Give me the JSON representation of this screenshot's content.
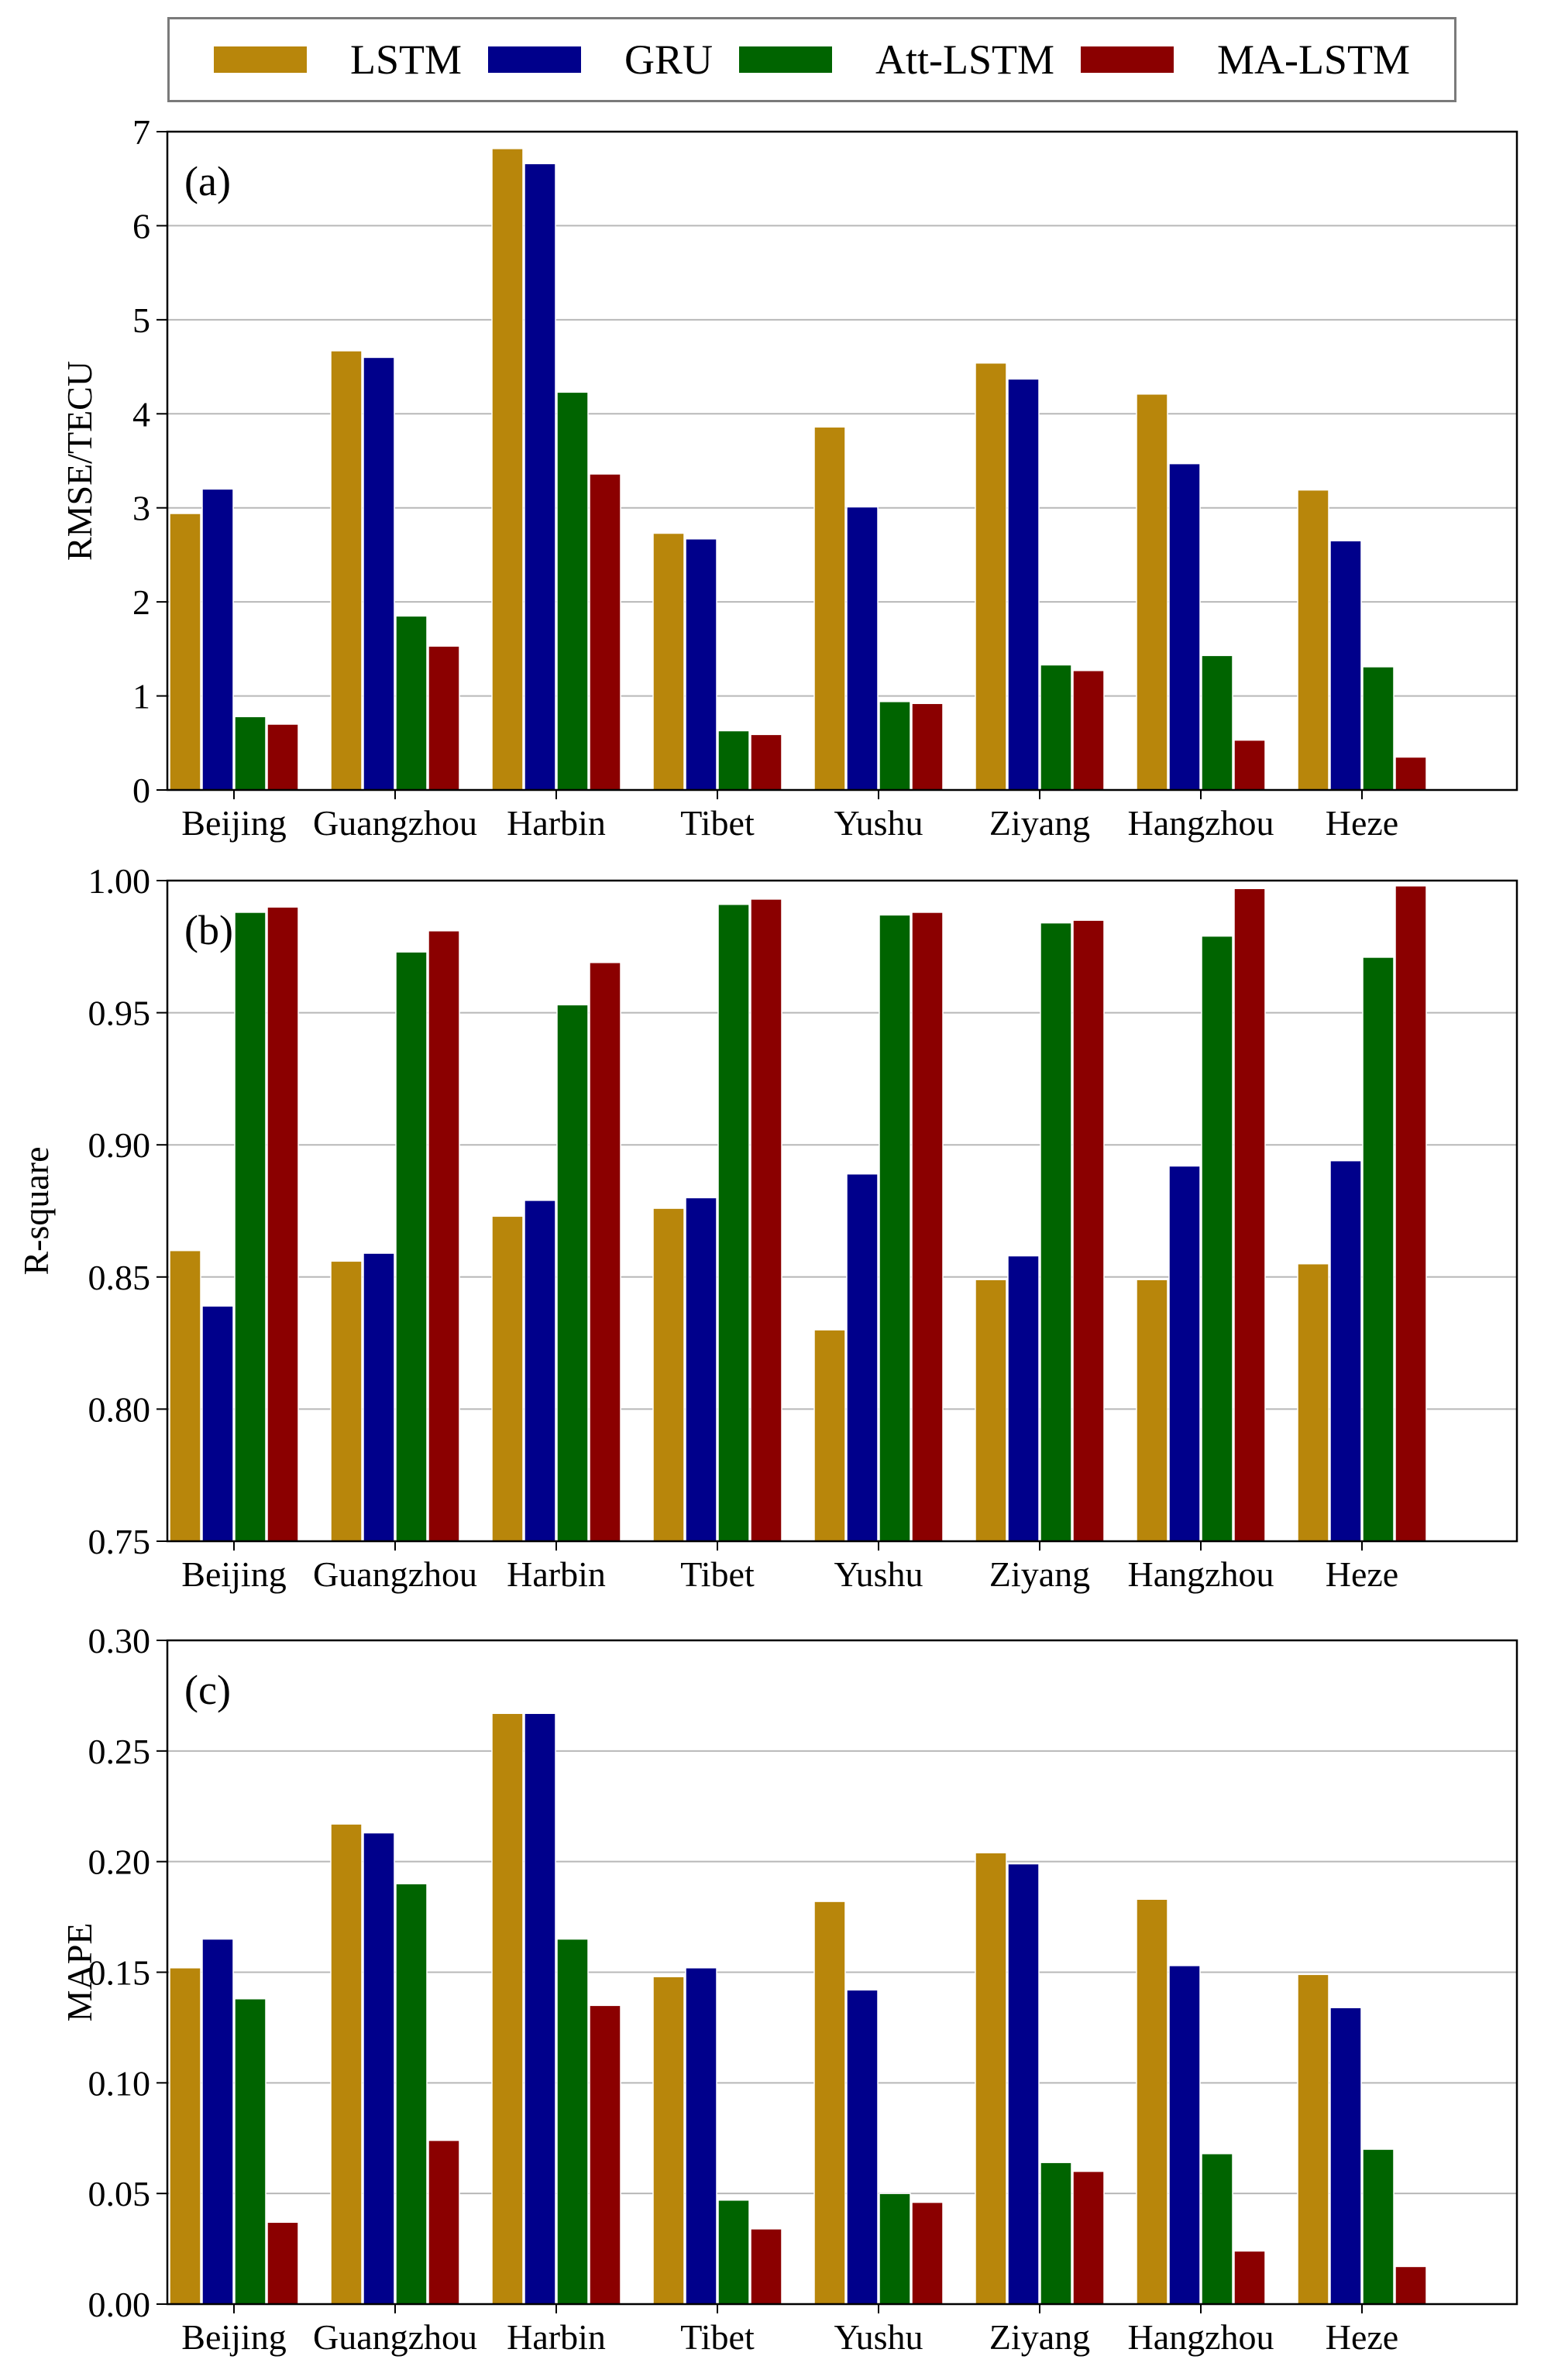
{
  "chart_data": [
    {
      "type": "bar",
      "panel_label": "(a)",
      "ylabel": "RMSE/TECU",
      "ylim": [
        0,
        7
      ],
      "yticks": [
        "0",
        "1",
        "2",
        "3",
        "4",
        "5",
        "6",
        "7"
      ],
      "categories": [
        "Beijing",
        "Guangzhou",
        "Harbin",
        "Tibet",
        "Yushu",
        "Ziyang",
        "Hangzhou",
        "Heze"
      ],
      "series": [
        {
          "name": "LSTM",
          "values": [
            2.94,
            4.67,
            6.82,
            2.73,
            3.86,
            4.54,
            4.21,
            3.19
          ]
        },
        {
          "name": "GRU",
          "values": [
            3.2,
            4.6,
            6.66,
            2.67,
            3.01,
            4.37,
            3.47,
            2.65
          ]
        },
        {
          "name": "Att-LSTM",
          "values": [
            0.78,
            1.85,
            4.23,
            0.63,
            0.94,
            1.33,
            1.43,
            1.31
          ]
        },
        {
          "name": "MA-LSTM",
          "values": [
            0.7,
            1.53,
            3.36,
            0.59,
            0.92,
            1.27,
            0.53,
            0.35
          ]
        }
      ],
      "grid": true
    },
    {
      "type": "bar",
      "panel_label": "(b)",
      "ylabel": "R-square",
      "ylim": [
        0.75,
        1.0
      ],
      "yticks": [
        "0.75",
        "0.80",
        "0.85",
        "0.90",
        "0.95",
        "1.00"
      ],
      "categories": [
        "Beijing",
        "Guangzhou",
        "Harbin",
        "Tibet",
        "Yushu",
        "Ziyang",
        "Hangzhou",
        "Heze"
      ],
      "series": [
        {
          "name": "LSTM",
          "values": [
            0.86,
            0.856,
            0.873,
            0.876,
            0.83,
            0.849,
            0.849,
            0.855
          ]
        },
        {
          "name": "GRU",
          "values": [
            0.839,
            0.859,
            0.879,
            0.88,
            0.889,
            0.858,
            0.892,
            0.894
          ]
        },
        {
          "name": "Att-LSTM",
          "values": [
            0.988,
            0.973,
            0.953,
            0.991,
            0.987,
            0.984,
            0.979,
            0.971
          ]
        },
        {
          "name": "MA-LSTM",
          "values": [
            0.99,
            0.981,
            0.969,
            0.993,
            0.988,
            0.985,
            0.997,
            0.998
          ]
        }
      ],
      "grid": true
    },
    {
      "type": "bar",
      "panel_label": "(c)",
      "ylabel": "MAPE",
      "ylim": [
        0,
        0.3
      ],
      "yticks": [
        "0.00",
        "0.05",
        "0.10",
        "0.15",
        "0.20",
        "0.25",
        "0.30"
      ],
      "categories": [
        "Beijing",
        "Guangzhou",
        "Harbin",
        "Tibet",
        "Yushu",
        "Ziyang",
        "Hangzhou",
        "Heze"
      ],
      "series": [
        {
          "name": "LSTM",
          "values": [
            0.152,
            0.217,
            0.267,
            0.148,
            0.182,
            0.204,
            0.183,
            0.149
          ]
        },
        {
          "name": "GRU",
          "values": [
            0.165,
            0.213,
            0.267,
            0.152,
            0.142,
            0.199,
            0.153,
            0.134
          ]
        },
        {
          "name": "Att-LSTM",
          "values": [
            0.138,
            0.19,
            0.165,
            0.047,
            0.05,
            0.064,
            0.068,
            0.07
          ]
        },
        {
          "name": "MA-LSTM",
          "values": [
            0.037,
            0.074,
            0.135,
            0.034,
            0.046,
            0.06,
            0.024,
            0.017
          ]
        }
      ],
      "grid": true
    }
  ],
  "legend": {
    "position": "top",
    "items": [
      {
        "label": "LSTM",
        "color": "#b8860b"
      },
      {
        "label": "GRU",
        "color": "#00008b"
      },
      {
        "label": "Att-LSTM",
        "color": "#006400"
      },
      {
        "label": "MA-LSTM",
        "color": "#8b0000"
      }
    ]
  }
}
